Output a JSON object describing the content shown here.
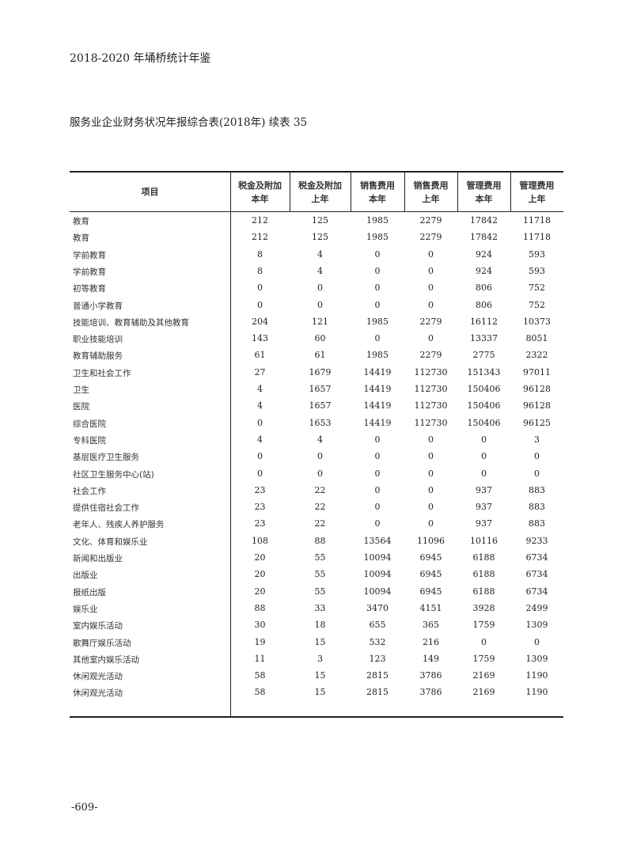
{
  "running_head": "2018-2020 年埇桥统计年鉴",
  "table_title": "服务业企业财务状况年报综合表(2018年) 续表 35",
  "columns": [
    {
      "l1": "项目",
      "l2": ""
    },
    {
      "l1": "税金及附加",
      "l2": "本年"
    },
    {
      "l1": "税金及附加",
      "l2": "上年"
    },
    {
      "l1": "销售费用",
      "l2": "本年"
    },
    {
      "l1": "销售费用",
      "l2": "上年"
    },
    {
      "l1": "管理费用",
      "l2": "本年"
    },
    {
      "l1": "管理费用",
      "l2": "上年"
    }
  ],
  "rows": [
    [
      "教育",
      "212",
      "125",
      "1985",
      "2279",
      "17842",
      "11718"
    ],
    [
      "教育",
      "212",
      "125",
      "1985",
      "2279",
      "17842",
      "11718"
    ],
    [
      "学前教育",
      "8",
      "4",
      "0",
      "0",
      "924",
      "593"
    ],
    [
      "学前教育",
      "8",
      "4",
      "0",
      "0",
      "924",
      "593"
    ],
    [
      "初等教育",
      "0",
      "0",
      "0",
      "0",
      "806",
      "752"
    ],
    [
      "普通小学教育",
      "0",
      "0",
      "0",
      "0",
      "806",
      "752"
    ],
    [
      "技能培训、教育辅助及其他教育",
      "204",
      "121",
      "1985",
      "2279",
      "16112",
      "10373"
    ],
    [
      "职业技能培训",
      "143",
      "60",
      "0",
      "0",
      "13337",
      "8051"
    ],
    [
      "教育辅助服务",
      "61",
      "61",
      "1985",
      "2279",
      "2775",
      "2322"
    ],
    [
      "卫生和社会工作",
      "27",
      "1679",
      "14419",
      "112730",
      "151343",
      "97011"
    ],
    [
      "卫生",
      "4",
      "1657",
      "14419",
      "112730",
      "150406",
      "96128"
    ],
    [
      "医院",
      "4",
      "1657",
      "14419",
      "112730",
      "150406",
      "96128"
    ],
    [
      "综合医院",
      "0",
      "1653",
      "14419",
      "112730",
      "150406",
      "96125"
    ],
    [
      "专科医院",
      "4",
      "4",
      "0",
      "0",
      "0",
      "3"
    ],
    [
      "基层医疗卫生服务",
      "0",
      "0",
      "0",
      "0",
      "0",
      "0"
    ],
    [
      "社区卫生服务中心(站)",
      "0",
      "0",
      "0",
      "0",
      "0",
      "0"
    ],
    [
      "社会工作",
      "23",
      "22",
      "0",
      "0",
      "937",
      "883"
    ],
    [
      "提供住宿社会工作",
      "23",
      "22",
      "0",
      "0",
      "937",
      "883"
    ],
    [
      "老年人、残疾人养护服务",
      "23",
      "22",
      "0",
      "0",
      "937",
      "883"
    ],
    [
      "文化、体育和娱乐业",
      "108",
      "88",
      "13564",
      "11096",
      "10116",
      "9233"
    ],
    [
      "新闻和出版业",
      "20",
      "55",
      "10094",
      "6945",
      "6188",
      "6734"
    ],
    [
      "出版业",
      "20",
      "55",
      "10094",
      "6945",
      "6188",
      "6734"
    ],
    [
      "报纸出版",
      "20",
      "55",
      "10094",
      "6945",
      "6188",
      "6734"
    ],
    [
      "娱乐业",
      "88",
      "33",
      "3470",
      "4151",
      "3928",
      "2499"
    ],
    [
      "室内娱乐活动",
      "30",
      "18",
      "655",
      "365",
      "1759",
      "1309"
    ],
    [
      "歌舞厅娱乐活动",
      "19",
      "15",
      "532",
      "216",
      "0",
      "0"
    ],
    [
      "其他室内娱乐活动",
      "11",
      "3",
      "123",
      "149",
      "1759",
      "1309"
    ],
    [
      "休闲观光活动",
      "58",
      "15",
      "2815",
      "3786",
      "2169",
      "1190"
    ],
    [
      "休闲观光活动",
      "58",
      "15",
      "2815",
      "3786",
      "2169",
      "1190"
    ]
  ],
  "page_number": "-609-"
}
